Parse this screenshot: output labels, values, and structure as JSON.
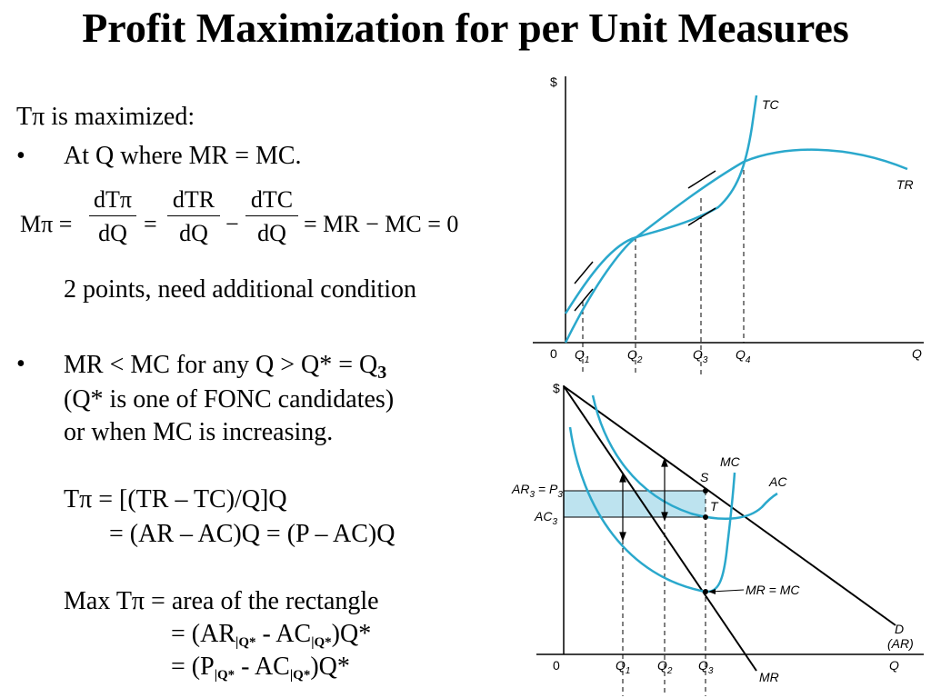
{
  "title": "Profit Maximization for per Unit Measures",
  "text": {
    "intro": "Tπ is maximized:",
    "bullet1": "At Q where MR = MC.",
    "eq_lhs": "Mπ =",
    "eq_f1_num": "dTπ",
    "eq_f1_den": "dQ",
    "eq_eq": "=",
    "eq_f2_num": "dTR",
    "eq_f2_den": "dQ",
    "eq_minus": "−",
    "eq_f3_num": "dTC",
    "eq_f3_den": "dQ",
    "eq_rhs": "= MR − MC = 0",
    "note": "2 points, need additional condition",
    "bullet2_main": "MR < MC for any Q > Q* = Q",
    "bullet2_sub": "3",
    "bullet2_l2": "(Q* is one of FONC candidates)",
    "bullet2_l3": "or when MC is increasing.",
    "tp_l1": "Tπ = [(TR – TC)/Q]Q",
    "tp_l2": "= (AR – AC)Q = (P – AC)Q",
    "max_l1": "Max Tπ = area of the rectangle",
    "max_l2a": "= (AR",
    "max_l2b": " - AC",
    "max_l2c": ")Q*",
    "max_l3a": "= (P",
    "max_l3b": " - AC",
    "max_l3c": ")Q*",
    "q_sub": "|Q*",
    "bullet_glyph": "•"
  },
  "top_chart": {
    "y_label": "$",
    "x_label": "Q",
    "origin": "0",
    "curve_tc": "TC",
    "curve_tr": "TR",
    "ticks": [
      "Q1",
      "Q2",
      "Q3",
      "Q4"
    ]
  },
  "bottom_chart": {
    "y_label": "$",
    "x_label": "Q",
    "origin": "0",
    "ar_label": "AR",
    "ar_sub": "3",
    "p_label": " = P",
    "p_sub": "3",
    "ac3_label": "AC",
    "ac3_sub": "3",
    "mc": "MC",
    "ac": "AC",
    "s": "S",
    "t": "T",
    "mr_eq_mc": "MR = MC",
    "d": "D",
    "ar_paren": "(AR)",
    "mr": "MR",
    "ticks": [
      "Q1",
      "Q2",
      "Q3"
    ]
  },
  "colors": {
    "curve": "#2aa8cc",
    "rect": "#bde3ef",
    "ink": "#000000"
  }
}
